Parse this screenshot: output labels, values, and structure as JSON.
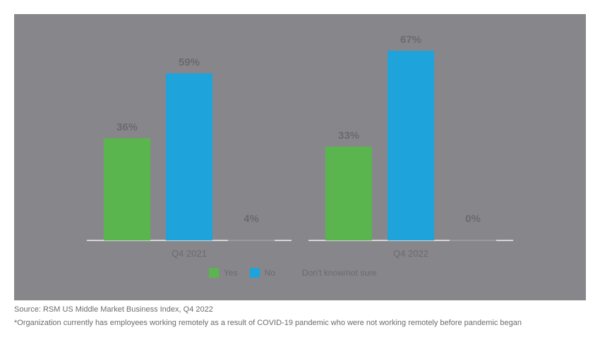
{
  "chart_data": {
    "type": "bar",
    "title": "",
    "categories": [
      "Q4 2021",
      "Q4 2022"
    ],
    "series": [
      {
        "name": "Yes",
        "color": "#5bb54f",
        "values": [
          36,
          33
        ]
      },
      {
        "name": "No",
        "color": "#1ea3da",
        "values": [
          59,
          67
        ]
      },
      {
        "name": "Don't know/not sure",
        "color": "#9a9a9e",
        "values": [
          4,
          0
        ]
      }
    ],
    "value_labels": [
      [
        "36%",
        "59%",
        "4%"
      ],
      [
        "33%",
        "67%",
        "0%"
      ]
    ],
    "xlabel": "",
    "ylabel": "",
    "ylim": [
      0,
      80
    ],
    "grid": false,
    "legend_position": "bottom"
  },
  "legend": [
    {
      "label": "Yes",
      "color": "#5bb54f"
    },
    {
      "label": "No",
      "color": "#1ea3da"
    },
    {
      "label": "Don't know/not sure",
      "color": null
    }
  ],
  "footer": {
    "source": "Source: RSM US Middle Market Business Index, Q4 2022",
    "note": "*Organization currently has employees working remotely as a result of COVID-19 pandemic who were not working remotely before pandemic began"
  }
}
